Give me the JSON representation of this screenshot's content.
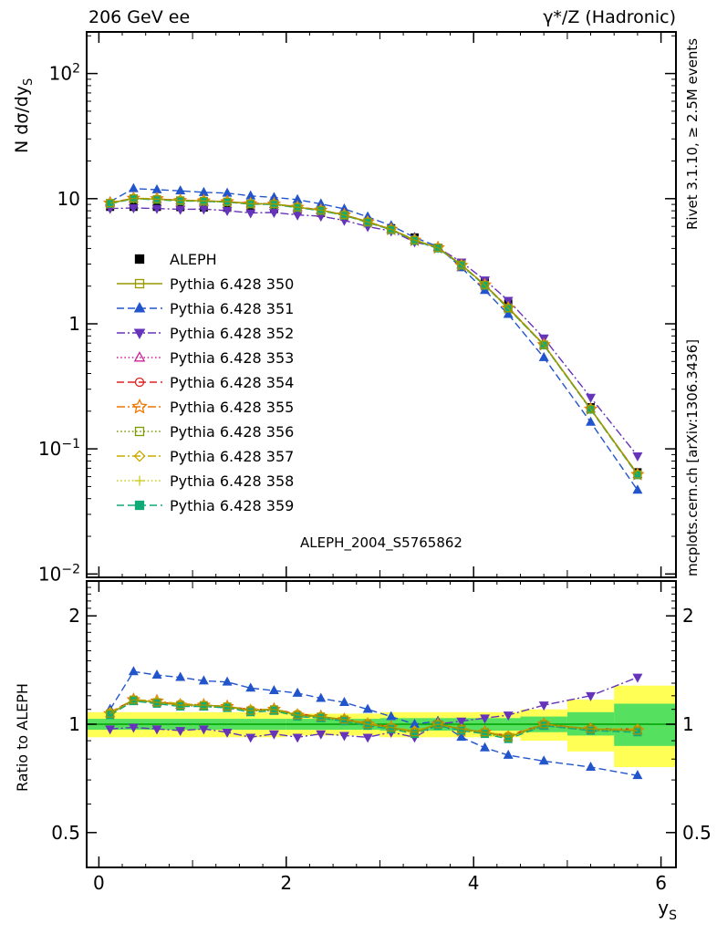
{
  "header": {
    "left": "206 GeV ee",
    "right": "γ*/Z (Hadronic)"
  },
  "side_notes": {
    "top": "Rivet 3.1.10, ≥ 2.5M events",
    "bottom": "mcplots.cern.ch [arXiv:1306.3436]"
  },
  "watermark": "ALEPH_2004_S5765862",
  "labels": {
    "y_main": "N dσ/dy",
    "y_main_sub": "S",
    "y_ratio": "Ratio to ALEPH",
    "x": "y",
    "x_sub": "S"
  },
  "chart_data": {
    "type": "line",
    "title": "206 GeV ee — γ*/Z (Hadronic)",
    "xlabel": "y_S",
    "ylabel": "N dσ/dy_S",
    "ylabel_ratio": "Ratio to ALEPH",
    "x_range": [
      -0.13,
      6.16
    ],
    "y_range_main": [
      0.0094,
      215
    ],
    "y_range_ratio": [
      0.4,
      2.5
    ],
    "x_ticks_labeled": [
      0,
      2,
      4,
      6
    ],
    "y_ticks_main": [
      100,
      10,
      1,
      0.1,
      0.01
    ],
    "y_ticks_ratio": [
      0.5,
      1,
      2
    ],
    "x": [
      0.12,
      0.37,
      0.62,
      0.87,
      1.12,
      1.37,
      1.62,
      1.87,
      2.12,
      2.37,
      2.62,
      2.87,
      3.12,
      3.37,
      3.62,
      3.87,
      4.12,
      4.37,
      4.75,
      5.25,
      5.75
    ],
    "reference": {
      "name": "ALEPH",
      "color": "#000000",
      "marker": "square",
      "filled": true,
      "values": [
        8.6,
        8.6,
        8.6,
        8.55,
        8.5,
        8.45,
        8.35,
        8.25,
        8.05,
        7.7,
        7.2,
        6.5,
        5.8,
        4.9,
        4.05,
        3.05,
        2.15,
        1.45,
        0.68,
        0.215,
        0.065
      ],
      "errors": [
        0.13,
        0.13,
        0.13,
        0.13,
        0.13,
        0.13,
        0.13,
        0.13,
        0.13,
        0.13,
        0.11,
        0.1,
        0.09,
        0.4,
        0.08,
        0.06,
        0.05,
        0.03,
        0.015,
        0.006,
        0.003
      ]
    },
    "band_colors": {
      "yellow": "#ffff55",
      "green": "#55e060"
    },
    "ratio_line_color": "#00a000",
    "bands": [
      {
        "x0": -0.13,
        "x1": 2.0,
        "yellow": [
          0.92,
          1.08
        ],
        "green": [
          0.965,
          1.035
        ]
      },
      {
        "x0": 2.0,
        "x1": 3.0,
        "yellow": [
          0.93,
          1.07
        ],
        "green": [
          0.965,
          1.035
        ]
      },
      {
        "x0": 3.0,
        "x1": 4.5,
        "yellow": [
          0.92,
          1.08
        ],
        "green": [
          0.96,
          1.04
        ]
      },
      {
        "x0": 4.5,
        "x1": 5.0,
        "yellow": [
          0.9,
          1.1
        ],
        "green": [
          0.95,
          1.05
        ]
      },
      {
        "x0": 5.0,
        "x1": 5.5,
        "yellow": [
          0.84,
          1.17
        ],
        "green": [
          0.93,
          1.08
        ]
      },
      {
        "x0": 5.5,
        "x1": 6.16,
        "yellow": [
          0.76,
          1.28
        ],
        "green": [
          0.87,
          1.14
        ]
      }
    ],
    "series": [
      {
        "name": "Pythia 6.428 350",
        "color": "#999900",
        "linestyle": "solid",
        "marker": "square",
        "filled": false,
        "ratio": [
          1.07,
          1.17,
          1.15,
          1.13,
          1.13,
          1.12,
          1.09,
          1.1,
          1.06,
          1.05,
          1.03,
          1.0,
          0.98,
          0.95,
          1.0,
          0.97,
          0.95,
          0.92,
          1.0,
          0.97,
          0.96
        ]
      },
      {
        "name": "Pythia 6.428 351",
        "color": "#2255cc",
        "linestyle": "dashed",
        "marker": "triangle-up",
        "filled": true,
        "ratio": [
          1.1,
          1.4,
          1.37,
          1.35,
          1.32,
          1.31,
          1.26,
          1.24,
          1.22,
          1.18,
          1.15,
          1.1,
          1.05,
          1.0,
          1.02,
          0.92,
          0.86,
          0.82,
          0.79,
          0.76,
          0.72
        ]
      },
      {
        "name": "Pythia 6.428 352",
        "color": "#6633bb",
        "linestyle": "dashdot",
        "marker": "triangle-down",
        "filled": true,
        "ratio": [
          0.97,
          0.98,
          0.97,
          0.96,
          0.97,
          0.95,
          0.92,
          0.94,
          0.92,
          0.94,
          0.93,
          0.92,
          0.95,
          0.92,
          1.0,
          1.02,
          1.04,
          1.06,
          1.13,
          1.2,
          1.35
        ]
      },
      {
        "name": "Pythia 6.428 353",
        "color": "#cc2299",
        "linestyle": "dotted",
        "marker": "triangle-up",
        "filled": false,
        "ratio": [
          1.07,
          1.16,
          1.15,
          1.13,
          1.12,
          1.12,
          1.09,
          1.09,
          1.06,
          1.04,
          1.03,
          1.0,
          0.98,
          0.95,
          1.0,
          0.97,
          0.95,
          0.92,
          0.99,
          0.97,
          0.96
        ]
      },
      {
        "name": "Pythia 6.428 354",
        "color": "#dd2222",
        "linestyle": "dashed",
        "marker": "circle",
        "filled": false,
        "ratio": [
          1.08,
          1.17,
          1.15,
          1.14,
          1.13,
          1.12,
          1.1,
          1.1,
          1.07,
          1.05,
          1.03,
          1.01,
          0.98,
          0.95,
          1.0,
          0.97,
          0.95,
          0.93,
          1.0,
          0.97,
          0.97
        ]
      },
      {
        "name": "Pythia 6.428 355",
        "color": "#ee7700",
        "linestyle": "dashdot",
        "marker": "star",
        "filled": false,
        "ratio": [
          1.07,
          1.17,
          1.16,
          1.13,
          1.13,
          1.12,
          1.09,
          1.1,
          1.06,
          1.05,
          1.03,
          1.0,
          0.98,
          0.95,
          1.0,
          0.96,
          0.95,
          0.92,
          1.0,
          0.97,
          0.96
        ]
      },
      {
        "name": "Pythia 6.428 356",
        "color": "#7a9a00",
        "linestyle": "dotted",
        "marker": "square",
        "filled": false,
        "ratio": [
          1.07,
          1.16,
          1.15,
          1.13,
          1.12,
          1.11,
          1.09,
          1.09,
          1.06,
          1.04,
          1.02,
          1.0,
          0.97,
          0.95,
          1.0,
          0.97,
          0.94,
          0.92,
          0.99,
          0.96,
          0.96
        ]
      },
      {
        "name": "Pythia 6.428 357",
        "color": "#ccaa00",
        "linestyle": "dashdot",
        "marker": "diamond",
        "filled": false,
        "ratio": [
          1.08,
          1.17,
          1.16,
          1.14,
          1.13,
          1.12,
          1.1,
          1.1,
          1.07,
          1.05,
          1.03,
          1.01,
          0.98,
          0.96,
          1.0,
          0.97,
          0.95,
          0.93,
          1.0,
          0.97,
          0.97
        ]
      },
      {
        "name": "Pythia 6.428 358",
        "color": "#cccc22",
        "linestyle": "dotted",
        "marker": "plus",
        "filled": false,
        "ratio": [
          1.07,
          1.17,
          1.15,
          1.13,
          1.13,
          1.12,
          1.09,
          1.1,
          1.06,
          1.05,
          1.03,
          1.0,
          0.98,
          0.95,
          1.0,
          0.97,
          0.95,
          0.92,
          1.0,
          0.97,
          0.96
        ]
      },
      {
        "name": "Pythia 6.428 359",
        "color": "#11aa77",
        "linestyle": "dashed",
        "marker": "square",
        "filled": true,
        "ratio": [
          1.06,
          1.16,
          1.14,
          1.12,
          1.12,
          1.11,
          1.08,
          1.09,
          1.05,
          1.04,
          1.02,
          0.99,
          0.97,
          0.94,
          0.99,
          0.96,
          0.94,
          0.91,
          0.99,
          0.96,
          0.95
        ]
      }
    ]
  }
}
